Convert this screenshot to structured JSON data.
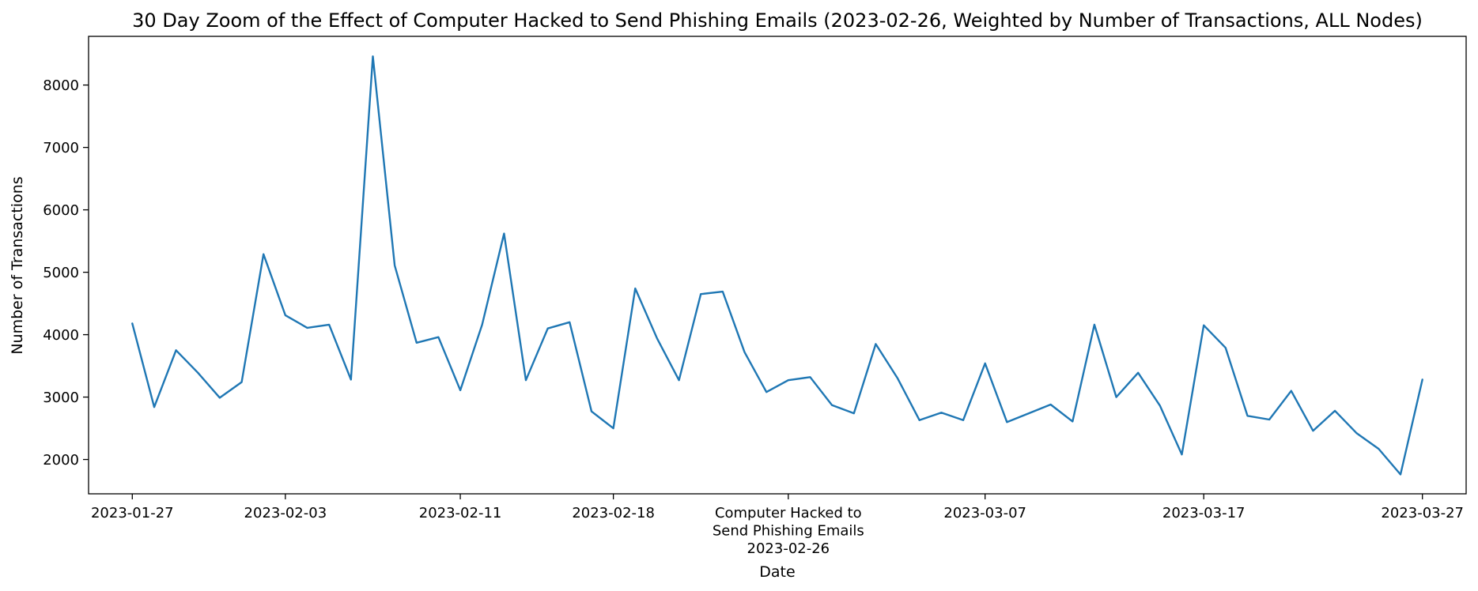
{
  "chart_data": {
    "type": "line",
    "title": "30 Day Zoom of the Effect of Computer Hacked to Send Phishing Emails (2023-02-26, Weighted by Number of Transactions, ALL Nodes)",
    "xlabel": "Date",
    "ylabel": "Number of Transactions",
    "ylim": [
      1450,
      8780
    ],
    "xlim": [
      "2023-01-25",
      "2023-03-29"
    ],
    "grid": false,
    "legend": "none",
    "color": "#1f77b4",
    "x_ticks": [
      {
        "date": "2023-01-27",
        "label": "2023-01-27"
      },
      {
        "date": "2023-02-03",
        "label": "2023-02-03"
      },
      {
        "date": "2023-02-11",
        "label": "2023-02-11"
      },
      {
        "date": "2023-02-18",
        "label": "2023-02-18"
      },
      {
        "date": "2023-02-26",
        "label": "Computer Hacked to\nSend Phishing Emails\n2023-02-26"
      },
      {
        "date": "2023-03-07",
        "label": "2023-03-07"
      },
      {
        "date": "2023-03-17",
        "label": "2023-03-17"
      },
      {
        "date": "2023-03-27",
        "label": "2023-03-27"
      }
    ],
    "y_ticks": [
      2000,
      3000,
      4000,
      5000,
      6000,
      7000,
      8000
    ],
    "x": [
      "2023-01-27",
      "2023-01-28",
      "2023-01-29",
      "2023-01-30",
      "2023-01-31",
      "2023-02-01",
      "2023-02-02",
      "2023-02-03",
      "2023-02-04",
      "2023-02-05",
      "2023-02-06",
      "2023-02-07",
      "2023-02-08",
      "2023-02-09",
      "2023-02-10",
      "2023-02-11",
      "2023-02-12",
      "2023-02-13",
      "2023-02-14",
      "2023-02-15",
      "2023-02-16",
      "2023-02-17",
      "2023-02-18",
      "2023-02-19",
      "2023-02-20",
      "2023-02-21",
      "2023-02-22",
      "2023-02-23",
      "2023-02-24",
      "2023-02-25",
      "2023-02-26",
      "2023-02-27",
      "2023-02-28",
      "2023-03-01",
      "2023-03-02",
      "2023-03-03",
      "2023-03-04",
      "2023-03-05",
      "2023-03-06",
      "2023-03-07",
      "2023-03-08",
      "2023-03-09",
      "2023-03-10",
      "2023-03-11",
      "2023-03-12",
      "2023-03-13",
      "2023-03-14",
      "2023-03-15",
      "2023-03-16",
      "2023-03-17",
      "2023-03-18",
      "2023-03-19",
      "2023-03-20",
      "2023-03-21",
      "2023-03-22",
      "2023-03-23",
      "2023-03-24",
      "2023-03-25",
      "2023-03-26",
      "2023-03-27"
    ],
    "values": [
      4180,
      2840,
      3750,
      3390,
      2990,
      3240,
      5290,
      4310,
      4110,
      4160,
      3280,
      8460,
      5110,
      3870,
      3960,
      3110,
      4160,
      5620,
      3270,
      4100,
      4200,
      2770,
      2500,
      4740,
      3940,
      3270,
      4650,
      4690,
      3720,
      3080,
      3270,
      3320,
      2870,
      2740,
      3850,
      3300,
      2630,
      2750,
      2630,
      3540,
      2600,
      2740,
      2880,
      2610,
      4160,
      3000,
      3390,
      2860,
      2080,
      4150,
      3790,
      2700,
      2640,
      3100,
      2460,
      2780,
      2420,
      2170,
      1760,
      3280
    ]
  }
}
